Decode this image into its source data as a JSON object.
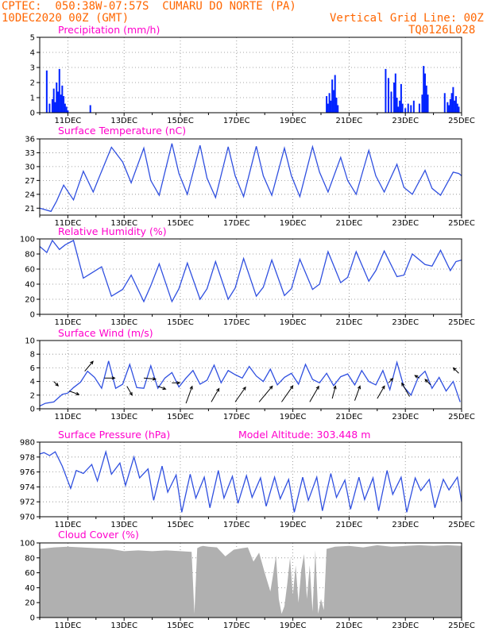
{
  "header": {
    "line1": "CPTEC:  050:38W-07:57S  CUMARU DO NORTE (PA)",
    "line2": "10DEC2020 00Z (GMT)",
    "grid_note": "Vertical Grid Line: 00Z",
    "code": "TQ0126L028"
  },
  "colors": {
    "header": "#ff6600",
    "panel_title": "#ff00cc",
    "line": "#3050e0",
    "bar": "#0022ff",
    "cloud": "#b0b0b0",
    "arrow": "#000000"
  },
  "x_axis": {
    "unit": "day of December 2020, 00Z",
    "range": [
      10.0,
      25.0
    ],
    "ticks": [
      11,
      13,
      15,
      17,
      19,
      21,
      23,
      25
    ],
    "tick_labels": [
      "11DEC",
      "13DEC",
      "15DEC",
      "17DEC",
      "19DEC",
      "21DEC",
      "23DEC",
      "25DEC"
    ]
  },
  "chart_data": [
    {
      "type": "bar",
      "title": "Precipitation (mm/h)",
      "ylim": [
        0,
        5
      ],
      "yticks": [
        0,
        1,
        2,
        3,
        4,
        5
      ],
      "grid": true,
      "x": [
        10.25,
        10.35,
        10.45,
        10.5,
        10.55,
        10.6,
        10.65,
        10.7,
        10.75,
        10.8,
        10.85,
        10.9,
        10.95,
        11.0,
        11.8,
        20.2,
        20.25,
        20.3,
        20.35,
        20.4,
        20.45,
        20.5,
        20.55,
        20.6,
        22.3,
        22.4,
        22.5,
        22.6,
        22.65,
        22.7,
        22.75,
        22.8,
        22.85,
        22.9,
        23.0,
        23.1,
        23.2,
        23.3,
        23.5,
        23.6,
        23.65,
        23.7,
        23.75,
        23.8,
        24.4,
        24.5,
        24.55,
        24.6,
        24.65,
        24.7,
        24.75,
        24.8,
        24.85,
        24.9
      ],
      "values": [
        2.8,
        0.6,
        0.9,
        1.6,
        0.7,
        2.0,
        1.4,
        2.9,
        1.2,
        1.8,
        1.1,
        0.6,
        0.4,
        0.15,
        0.5,
        1.1,
        0.6,
        1.3,
        0.8,
        2.2,
        1.5,
        2.5,
        1.0,
        0.5,
        2.9,
        2.3,
        1.4,
        2.0,
        2.6,
        1.0,
        0.4,
        0.8,
        1.9,
        0.6,
        0.3,
        0.6,
        0.5,
        0.8,
        0.6,
        1.2,
        3.1,
        2.6,
        1.8,
        1.2,
        1.3,
        0.7,
        0.5,
        0.9,
        1.3,
        1.7,
        0.8,
        1.1,
        0.6,
        0.4
      ]
    },
    {
      "type": "line",
      "title": "Surface Temperature (nC)",
      "ylim": [
        19.5,
        36
      ],
      "yticks": [
        21,
        24,
        27,
        30,
        33,
        36
      ],
      "grid": true,
      "x": [
        10.0,
        10.4,
        10.6,
        10.85,
        11.2,
        11.55,
        11.9,
        12.2,
        12.55,
        12.95,
        13.25,
        13.7,
        13.95,
        14.25,
        14.7,
        14.95,
        15.25,
        15.7,
        15.95,
        16.25,
        16.7,
        16.95,
        17.25,
        17.7,
        17.95,
        18.25,
        18.7,
        18.95,
        19.25,
        19.7,
        19.95,
        20.25,
        20.7,
        20.95,
        21.25,
        21.7,
        21.95,
        22.25,
        22.7,
        22.95,
        23.25,
        23.7,
        23.95,
        24.25,
        24.7,
        24.9,
        25.0
      ],
      "values": [
        21.0,
        20.3,
        22.5,
        26.0,
        22.8,
        29.0,
        24.5,
        29.0,
        34.2,
        31.0,
        26.5,
        34.0,
        27.0,
        23.8,
        35.0,
        28.5,
        24.0,
        34.6,
        27.5,
        23.3,
        34.3,
        28.0,
        23.5,
        34.4,
        28.0,
        23.8,
        34.0,
        28.0,
        23.5,
        34.3,
        28.8,
        24.5,
        32.0,
        27.0,
        24.0,
        33.5,
        28.0,
        24.5,
        30.5,
        25.5,
        24.0,
        29.2,
        25.3,
        23.8,
        28.8,
        28.5,
        28.0
      ]
    },
    {
      "type": "line",
      "title": "Relative Humidity (%)",
      "ylim": [
        0,
        100
      ],
      "yticks": [
        0,
        20,
        40,
        60,
        80,
        100
      ],
      "grid": true,
      "x": [
        10.0,
        10.25,
        10.45,
        10.7,
        10.9,
        11.2,
        11.55,
        11.85,
        12.2,
        12.55,
        12.95,
        13.25,
        13.7,
        13.95,
        14.25,
        14.7,
        14.95,
        15.25,
        15.7,
        15.95,
        16.25,
        16.7,
        16.95,
        17.25,
        17.7,
        17.95,
        18.25,
        18.7,
        18.95,
        19.25,
        19.7,
        19.95,
        20.25,
        20.7,
        20.95,
        21.25,
        21.7,
        21.95,
        22.25,
        22.7,
        22.95,
        23.25,
        23.7,
        23.95,
        24.25,
        24.6,
        24.8,
        25.0
      ],
      "values": [
        90,
        82,
        98,
        86,
        92,
        98,
        48,
        55,
        63,
        24,
        33,
        52,
        17,
        38,
        67,
        17,
        34,
        68,
        20,
        34,
        70,
        20,
        35,
        74,
        24,
        36,
        72,
        25,
        34,
        73,
        33,
        40,
        83,
        42,
        49,
        83,
        44,
        58,
        84,
        50,
        52,
        80,
        66,
        64,
        85,
        58,
        70,
        72
      ]
    },
    {
      "type": "line",
      "title": "Surface Wind (m/s)",
      "ylim": [
        0,
        10
      ],
      "yticks": [
        0,
        2,
        4,
        6,
        8,
        10
      ],
      "grid": true,
      "x": [
        10.0,
        10.2,
        10.5,
        10.8,
        11.0,
        11.2,
        11.45,
        11.7,
        11.95,
        12.2,
        12.45,
        12.7,
        12.95,
        13.2,
        13.45,
        13.7,
        13.95,
        14.2,
        14.45,
        14.7,
        14.95,
        15.2,
        15.45,
        15.7,
        15.95,
        16.2,
        16.45,
        16.7,
        16.95,
        17.2,
        17.45,
        17.7,
        17.95,
        18.2,
        18.45,
        18.7,
        18.95,
        19.2,
        19.45,
        19.7,
        19.95,
        20.2,
        20.45,
        20.7,
        20.95,
        21.2,
        21.45,
        21.7,
        21.95,
        22.2,
        22.45,
        22.7,
        22.95,
        23.2,
        23.45,
        23.7,
        23.95,
        24.2,
        24.45,
        24.7,
        24.95
      ],
      "values": [
        0.4,
        0.8,
        1.0,
        2.1,
        2.3,
        3.1,
        3.9,
        5.5,
        4.6,
        3.0,
        7.0,
        3.0,
        3.6,
        6.5,
        3.1,
        3.0,
        6.3,
        3.0,
        4.5,
        5.3,
        3.2,
        4.5,
        5.6,
        3.6,
        4.2,
        6.4,
        3.8,
        5.6,
        5.0,
        4.5,
        6.2,
        4.8,
        4.0,
        5.8,
        3.5,
        4.6,
        5.2,
        3.6,
        6.5,
        4.3,
        3.8,
        5.2,
        3.4,
        4.7,
        5.1,
        3.5,
        5.6,
        4.0,
        3.5,
        5.6,
        2.8,
        6.8,
        3.2,
        2.0,
        4.5,
        5.5,
        3.0,
        4.6,
        2.6,
        4.0,
        1.0
      ],
      "arrows": [
        {
          "x": 10.5,
          "y": 4.0,
          "speed": 1.2,
          "to_deg": 135
        },
        {
          "x": 11.05,
          "y": 2.6,
          "speed": 2.0,
          "to_deg": 110
        },
        {
          "x": 11.6,
          "y": 5.5,
          "speed": 2.5,
          "to_deg": 40
        },
        {
          "x": 12.3,
          "y": 4.5,
          "speed": 2.0,
          "to_deg": 90
        },
        {
          "x": 13.1,
          "y": 3.3,
          "speed": 2.0,
          "to_deg": 150
        },
        {
          "x": 13.7,
          "y": 4.5,
          "speed": 2.3,
          "to_deg": 95
        },
        {
          "x": 14.2,
          "y": 3.3,
          "speed": 1.6,
          "to_deg": 110
        },
        {
          "x": 14.7,
          "y": 3.8,
          "speed": 1.5,
          "to_deg": 90
        },
        {
          "x": 15.2,
          "y": 0.8,
          "speed": 3.5,
          "to_deg": 20
        },
        {
          "x": 16.1,
          "y": 1.0,
          "speed": 3.0,
          "to_deg": 30
        },
        {
          "x": 16.95,
          "y": 1.0,
          "speed": 3.5,
          "to_deg": 35
        },
        {
          "x": 17.8,
          "y": 1.0,
          "speed": 4.0,
          "to_deg": 40
        },
        {
          "x": 18.6,
          "y": 1.0,
          "speed": 3.8,
          "to_deg": 35
        },
        {
          "x": 19.6,
          "y": 1.0,
          "speed": 3.5,
          "to_deg": 30
        },
        {
          "x": 20.4,
          "y": 1.5,
          "speed": 2.5,
          "to_deg": 15
        },
        {
          "x": 21.2,
          "y": 1.2,
          "speed": 3.0,
          "to_deg": 20
        },
        {
          "x": 22.0,
          "y": 1.5,
          "speed": 2.8,
          "to_deg": 30
        },
        {
          "x": 22.4,
          "y": 3.8,
          "speed": 1.2,
          "to_deg": 45
        },
        {
          "x": 23.15,
          "y": 1.8,
          "speed": 3.0,
          "to_deg": 330
        },
        {
          "x": 23.5,
          "y": 4.5,
          "speed": 1.0,
          "to_deg": 300
        },
        {
          "x": 23.9,
          "y": 3.5,
          "speed": 1.5,
          "to_deg": 315
        },
        {
          "x": 24.9,
          "y": 5.2,
          "speed": 1.5,
          "to_deg": 315
        }
      ]
    },
    {
      "type": "line",
      "title": "Surface Pressure (hPa)",
      "subtitle": "Model Altitude: 303.448 m",
      "ylim": [
        970,
        980
      ],
      "yticks": [
        970,
        972,
        974,
        976,
        978,
        980
      ],
      "grid": true,
      "x": [
        10.0,
        10.15,
        10.35,
        10.55,
        10.8,
        11.1,
        11.3,
        11.55,
        11.85,
        12.05,
        12.35,
        12.55,
        12.85,
        13.05,
        13.35,
        13.55,
        13.85,
        14.05,
        14.35,
        14.55,
        14.85,
        15.05,
        15.35,
        15.55,
        15.85,
        16.05,
        16.35,
        16.55,
        16.85,
        17.05,
        17.35,
        17.55,
        17.85,
        18.05,
        18.35,
        18.55,
        18.85,
        19.05,
        19.35,
        19.55,
        19.85,
        20.05,
        20.35,
        20.55,
        20.85,
        21.05,
        21.35,
        21.55,
        21.85,
        22.05,
        22.35,
        22.55,
        22.85,
        23.05,
        23.35,
        23.55,
        23.85,
        24.05,
        24.35,
        24.55,
        24.85,
        25.0
      ],
      "values": [
        978.4,
        978.6,
        978.2,
        978.7,
        976.8,
        973.8,
        976.2,
        975.8,
        977.0,
        974.8,
        978.7,
        975.7,
        977.2,
        974.2,
        978.0,
        975.2,
        976.4,
        972.2,
        976.8,
        973.3,
        975.6,
        970.6,
        975.7,
        972.5,
        975.3,
        971.2,
        976.2,
        972.5,
        975.4,
        971.8,
        975.5,
        972.6,
        975.2,
        971.4,
        975.3,
        972.4,
        975.0,
        970.6,
        975.3,
        972.2,
        975.3,
        970.8,
        975.8,
        972.6,
        974.9,
        971.0,
        975.3,
        972.3,
        975.2,
        970.8,
        976.2,
        973.0,
        975.3,
        970.6,
        975.2,
        973.5,
        975.0,
        971.2,
        975.0,
        973.6,
        975.3,
        972.0
      ]
    },
    {
      "type": "area",
      "title": "Cloud Cover (%)",
      "ylim": [
        0,
        100
      ],
      "yticks": [
        0,
        20,
        40,
        60,
        80,
        100
      ],
      "grid": true,
      "x": [
        10.0,
        10.5,
        11.0,
        11.5,
        12.0,
        12.5,
        13.0,
        13.5,
        14.0,
        14.5,
        15.0,
        15.4,
        15.5,
        15.6,
        15.7,
        15.8,
        16.0,
        16.3,
        16.6,
        16.9,
        17.2,
        17.4,
        17.6,
        17.8,
        18.0,
        18.2,
        18.3,
        18.4,
        18.5,
        18.6,
        18.7,
        18.8,
        18.9,
        19.0,
        19.1,
        19.2,
        19.3,
        19.4,
        19.5,
        19.6,
        19.7,
        19.8,
        19.9,
        20.0,
        20.1,
        20.2,
        20.3,
        20.5,
        21.0,
        21.5,
        22.0,
        22.5,
        23.0,
        23.5,
        24.0,
        24.5,
        25.0
      ],
      "values": [
        92,
        94,
        95,
        94,
        93,
        92,
        89,
        90,
        89,
        90,
        89,
        88,
        5,
        93,
        95,
        96,
        95,
        94,
        82,
        91,
        93,
        94,
        75,
        87,
        60,
        35,
        58,
        83,
        25,
        5,
        15,
        45,
        80,
        30,
        70,
        20,
        64,
        85,
        25,
        70,
        8,
        90,
        5,
        25,
        10,
        92,
        93,
        95,
        96,
        94,
        97,
        95,
        96,
        97,
        96,
        97,
        96
      ]
    }
  ]
}
